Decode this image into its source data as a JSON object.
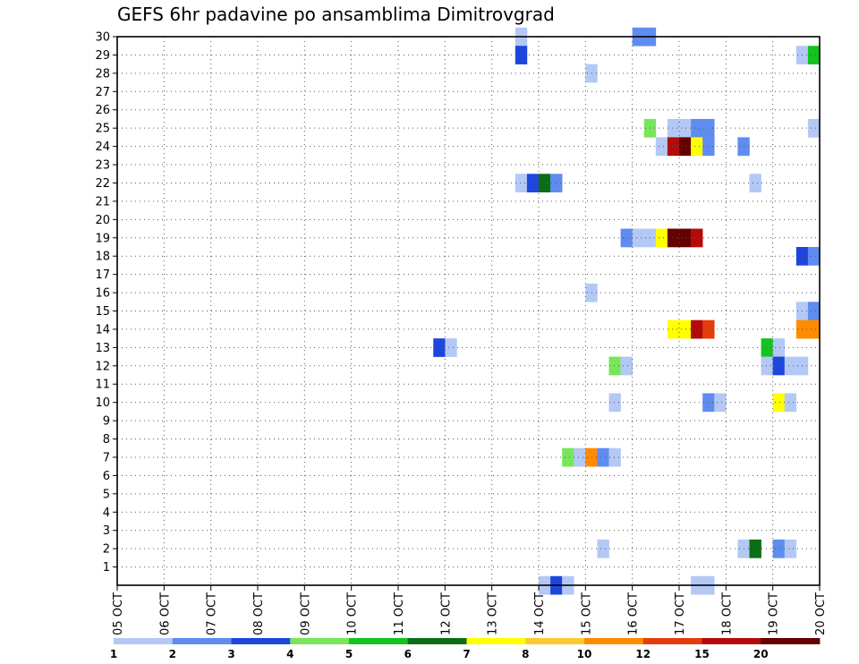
{
  "chart_data": {
    "type": "heatmap",
    "title": "GEFS 6hr padavine po ansamblima Dimitrovgrad",
    "y_ticks": [
      "1",
      "2",
      "3",
      "4",
      "5",
      "6",
      "7",
      "8",
      "9",
      "10",
      "11",
      "12",
      "13",
      "14",
      "15",
      "16",
      "17",
      "18",
      "19",
      "20",
      "21",
      "22",
      "23",
      "24",
      "25",
      "26",
      "27",
      "28",
      "29",
      "30"
    ],
    "x_ticks": [
      "05 OCT",
      "06 OCT",
      "07 OCT",
      "08 OCT",
      "09 OCT",
      "10 OCT",
      "11 OCT",
      "12 OCT",
      "13 OCT",
      "14 OCT",
      "15 OCT",
      "16 OCT",
      "17 OCT",
      "18 OCT",
      "19 OCT",
      "20 OCT"
    ],
    "x_range_days": [
      5,
      20
    ],
    "y_range": [
      0,
      30
    ],
    "grid": true,
    "legend": {
      "position": "bottom",
      "labels": [
        "1",
        "2",
        "3",
        "4",
        "5",
        "6",
        "7",
        "8",
        "10",
        "12",
        "15",
        "20"
      ],
      "colors": [
        "#b4c8f5",
        "#5f8cf0",
        "#1e46dc",
        "#78e65a",
        "#14c31e",
        "#0a6e14",
        "#ffff00",
        "#ffc832",
        "#ff8c00",
        "#e63c0a",
        "#b40a0a",
        "#640000"
      ]
    },
    "cells": [
      {
        "day": 13.5,
        "member": 30,
        "value": 1
      },
      {
        "day": 16.0,
        "member": 30,
        "value": 2
      },
      {
        "day": 16.25,
        "member": 30,
        "value": 2
      },
      {
        "day": 13.5,
        "member": 29,
        "value": 3
      },
      {
        "day": 19.5,
        "member": 29,
        "value": 1
      },
      {
        "day": 19.75,
        "member": 29,
        "value": 5
      },
      {
        "day": 15.0,
        "member": 28,
        "value": 1
      },
      {
        "day": 16.25,
        "member": 25,
        "value": 4
      },
      {
        "day": 16.75,
        "member": 25,
        "value": 1
      },
      {
        "day": 17.0,
        "member": 25,
        "value": 1
      },
      {
        "day": 17.25,
        "member": 25,
        "value": 2
      },
      {
        "day": 17.5,
        "member": 25,
        "value": 2
      },
      {
        "day": 19.75,
        "member": 25,
        "value": 1
      },
      {
        "day": 16.5,
        "member": 24,
        "value": 1
      },
      {
        "day": 16.75,
        "member": 24,
        "value": 15
      },
      {
        "day": 17.0,
        "member": 24,
        "value": 20
      },
      {
        "day": 17.25,
        "member": 24,
        "value": 7
      },
      {
        "day": 17.5,
        "member": 24,
        "value": 2
      },
      {
        "day": 18.25,
        "member": 24,
        "value": 2
      },
      {
        "day": 13.5,
        "member": 22,
        "value": 1
      },
      {
        "day": 13.75,
        "member": 22,
        "value": 3
      },
      {
        "day": 14.0,
        "member": 22,
        "value": 6
      },
      {
        "day": 14.25,
        "member": 22,
        "value": 2
      },
      {
        "day": 18.5,
        "member": 22,
        "value": 1
      },
      {
        "day": 15.75,
        "member": 19,
        "value": 2
      },
      {
        "day": 16.0,
        "member": 19,
        "value": 1
      },
      {
        "day": 16.25,
        "member": 19,
        "value": 1
      },
      {
        "day": 16.5,
        "member": 19,
        "value": 7
      },
      {
        "day": 16.75,
        "member": 19,
        "value": 20
      },
      {
        "day": 17.0,
        "member": 19,
        "value": 20
      },
      {
        "day": 17.25,
        "member": 19,
        "value": 15
      },
      {
        "day": 19.5,
        "member": 18,
        "value": 3
      },
      {
        "day": 19.75,
        "member": 18,
        "value": 2
      },
      {
        "day": 15.0,
        "member": 16,
        "value": 1
      },
      {
        "day": 19.5,
        "member": 15,
        "value": 1
      },
      {
        "day": 19.75,
        "member": 15,
        "value": 2
      },
      {
        "day": 16.75,
        "member": 14,
        "value": 7
      },
      {
        "day": 17.0,
        "member": 14,
        "value": 7
      },
      {
        "day": 17.25,
        "member": 14,
        "value": 15
      },
      {
        "day": 17.5,
        "member": 14,
        "value": 12
      },
      {
        "day": 19.5,
        "member": 14,
        "value": 10
      },
      {
        "day": 19.75,
        "member": 14,
        "value": 10
      },
      {
        "day": 11.75,
        "member": 13,
        "value": 3
      },
      {
        "day": 12.0,
        "member": 13,
        "value": 1
      },
      {
        "day": 18.75,
        "member": 13,
        "value": 5
      },
      {
        "day": 19.0,
        "member": 13,
        "value": 1
      },
      {
        "day": 18.75,
        "member": 12,
        "value": 1
      },
      {
        "day": 19.0,
        "member": 12,
        "value": 3
      },
      {
        "day": 19.25,
        "member": 12,
        "value": 1
      },
      {
        "day": 19.5,
        "member": 12,
        "value": 1
      },
      {
        "day": 15.5,
        "member": 12,
        "value": 4
      },
      {
        "day": 15.75,
        "member": 12,
        "value": 1
      },
      {
        "day": 15.5,
        "member": 10,
        "value": 1
      },
      {
        "day": 17.5,
        "member": 10,
        "value": 2
      },
      {
        "day": 17.75,
        "member": 10,
        "value": 1
      },
      {
        "day": 19.0,
        "member": 10,
        "value": 7
      },
      {
        "day": 19.25,
        "member": 10,
        "value": 1
      },
      {
        "day": 14.5,
        "member": 7,
        "value": 4
      },
      {
        "day": 14.75,
        "member": 7,
        "value": 1
      },
      {
        "day": 15.0,
        "member": 7,
        "value": 10
      },
      {
        "day": 15.25,
        "member": 7,
        "value": 2
      },
      {
        "day": 15.5,
        "member": 7,
        "value": 1
      },
      {
        "day": 15.25,
        "member": 2,
        "value": 1
      },
      {
        "day": 18.25,
        "member": 2,
        "value": 1
      },
      {
        "day": 18.5,
        "member": 2,
        "value": 6
      },
      {
        "day": 19.0,
        "member": 2,
        "value": 2
      },
      {
        "day": 19.25,
        "member": 2,
        "value": 1
      },
      {
        "day": 14.0,
        "member": 0,
        "value": 1
      },
      {
        "day": 14.25,
        "member": 0,
        "value": 3
      },
      {
        "day": 14.5,
        "member": 0,
        "value": 1
      },
      {
        "day": 17.25,
        "member": 0,
        "value": 1
      },
      {
        "day": 17.5,
        "member": 0,
        "value": 1
      }
    ]
  }
}
